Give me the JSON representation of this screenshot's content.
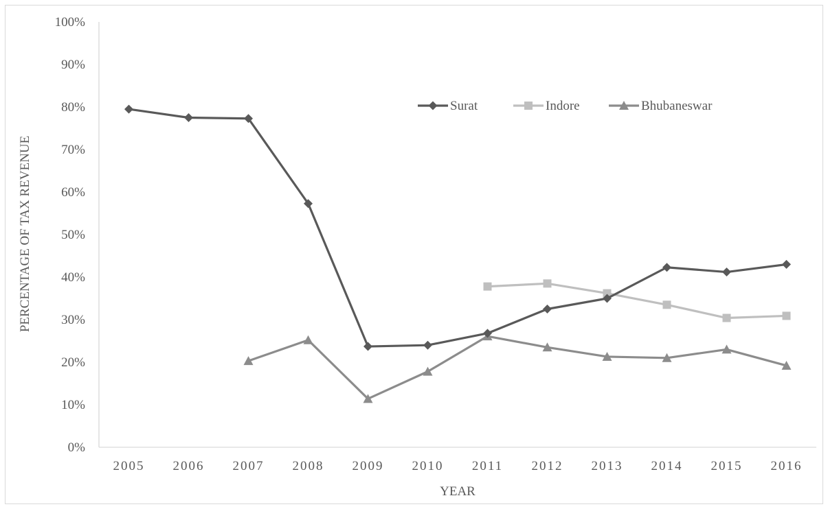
{
  "chart_data": {
    "type": "line",
    "title": "",
    "xlabel": "YEAR",
    "ylabel": "PERCENTAGE  OF TAX REVENUE",
    "categories": [
      "2005",
      "2006",
      "2007",
      "2008",
      "2009",
      "2010",
      "2011",
      "2012",
      "2013",
      "2014",
      "2015",
      "2016"
    ],
    "y_ticks": [
      "0%",
      "10%",
      "20%",
      "30%",
      "40%",
      "50%",
      "60%",
      "70%",
      "80%",
      "90%",
      "100%"
    ],
    "ylim": [
      0,
      100
    ],
    "grid": false,
    "legend_position": "top-right",
    "series": [
      {
        "name": "Surat",
        "marker": "diamond",
        "color": "#595959",
        "values": [
          79.5,
          77.5,
          77.3,
          57.3,
          23.7,
          24.0,
          26.8,
          32.5,
          35.0,
          42.3,
          41.2,
          43.0
        ]
      },
      {
        "name": "Indore",
        "marker": "square",
        "color": "#bfbfbf",
        "values": [
          null,
          null,
          null,
          null,
          null,
          null,
          37.8,
          38.5,
          36.2,
          33.5,
          30.4,
          30.9
        ]
      },
      {
        "name": "Bhubaneswar",
        "marker": "triangle",
        "color": "#8c8c8c",
        "values": [
          null,
          null,
          20.3,
          25.2,
          11.4,
          17.8,
          26.1,
          23.5,
          21.3,
          21.0,
          23.0,
          19.2
        ]
      }
    ]
  }
}
